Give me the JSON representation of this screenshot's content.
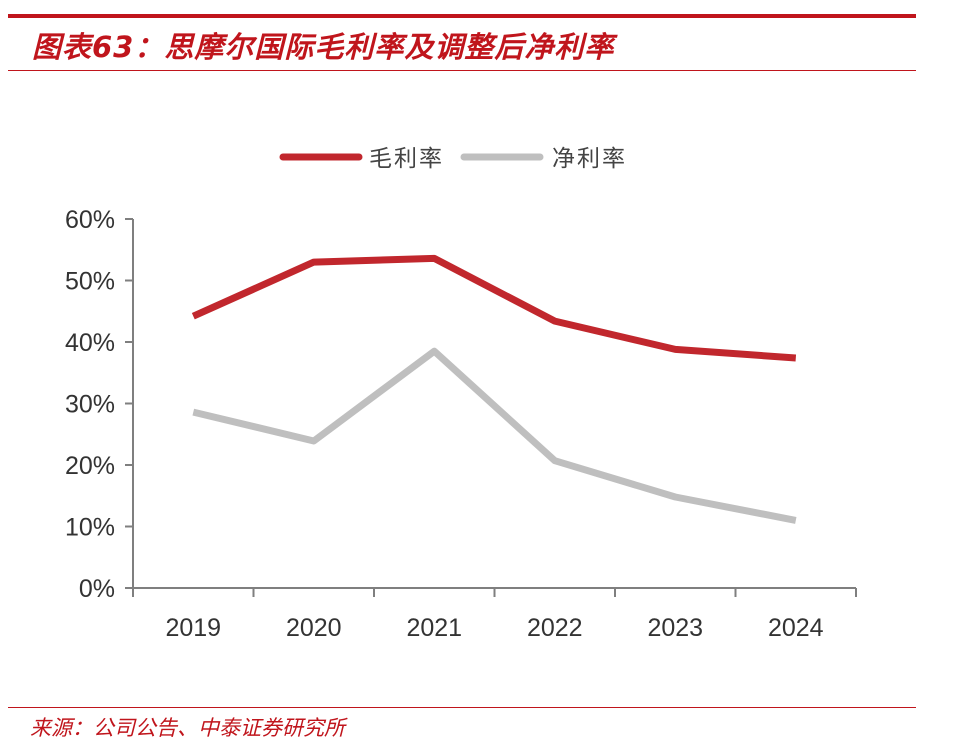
{
  "header": {
    "title": "图表63：思摩尔国际毛利率及调整后净利率"
  },
  "footer": {
    "source": "来源：公司公告、中泰证券研究所"
  },
  "chart_data": {
    "type": "line",
    "x": [
      "2019",
      "2020",
      "2021",
      "2022",
      "2023",
      "2024"
    ],
    "series": [
      {
        "name": "毛利率",
        "color": "#c1272d",
        "values": [
          44.2,
          53.0,
          53.6,
          43.4,
          38.8,
          37.4
        ]
      },
      {
        "name": "净利率",
        "color": "#bfbfbf",
        "values": [
          28.6,
          23.9,
          38.5,
          20.7,
          14.8,
          11.0
        ]
      }
    ],
    "yticks": [
      "0%",
      "10%",
      "20%",
      "30%",
      "40%",
      "50%",
      "60%"
    ],
    "ylim": [
      0,
      60
    ],
    "legend_position": "top-center",
    "grid": false
  }
}
